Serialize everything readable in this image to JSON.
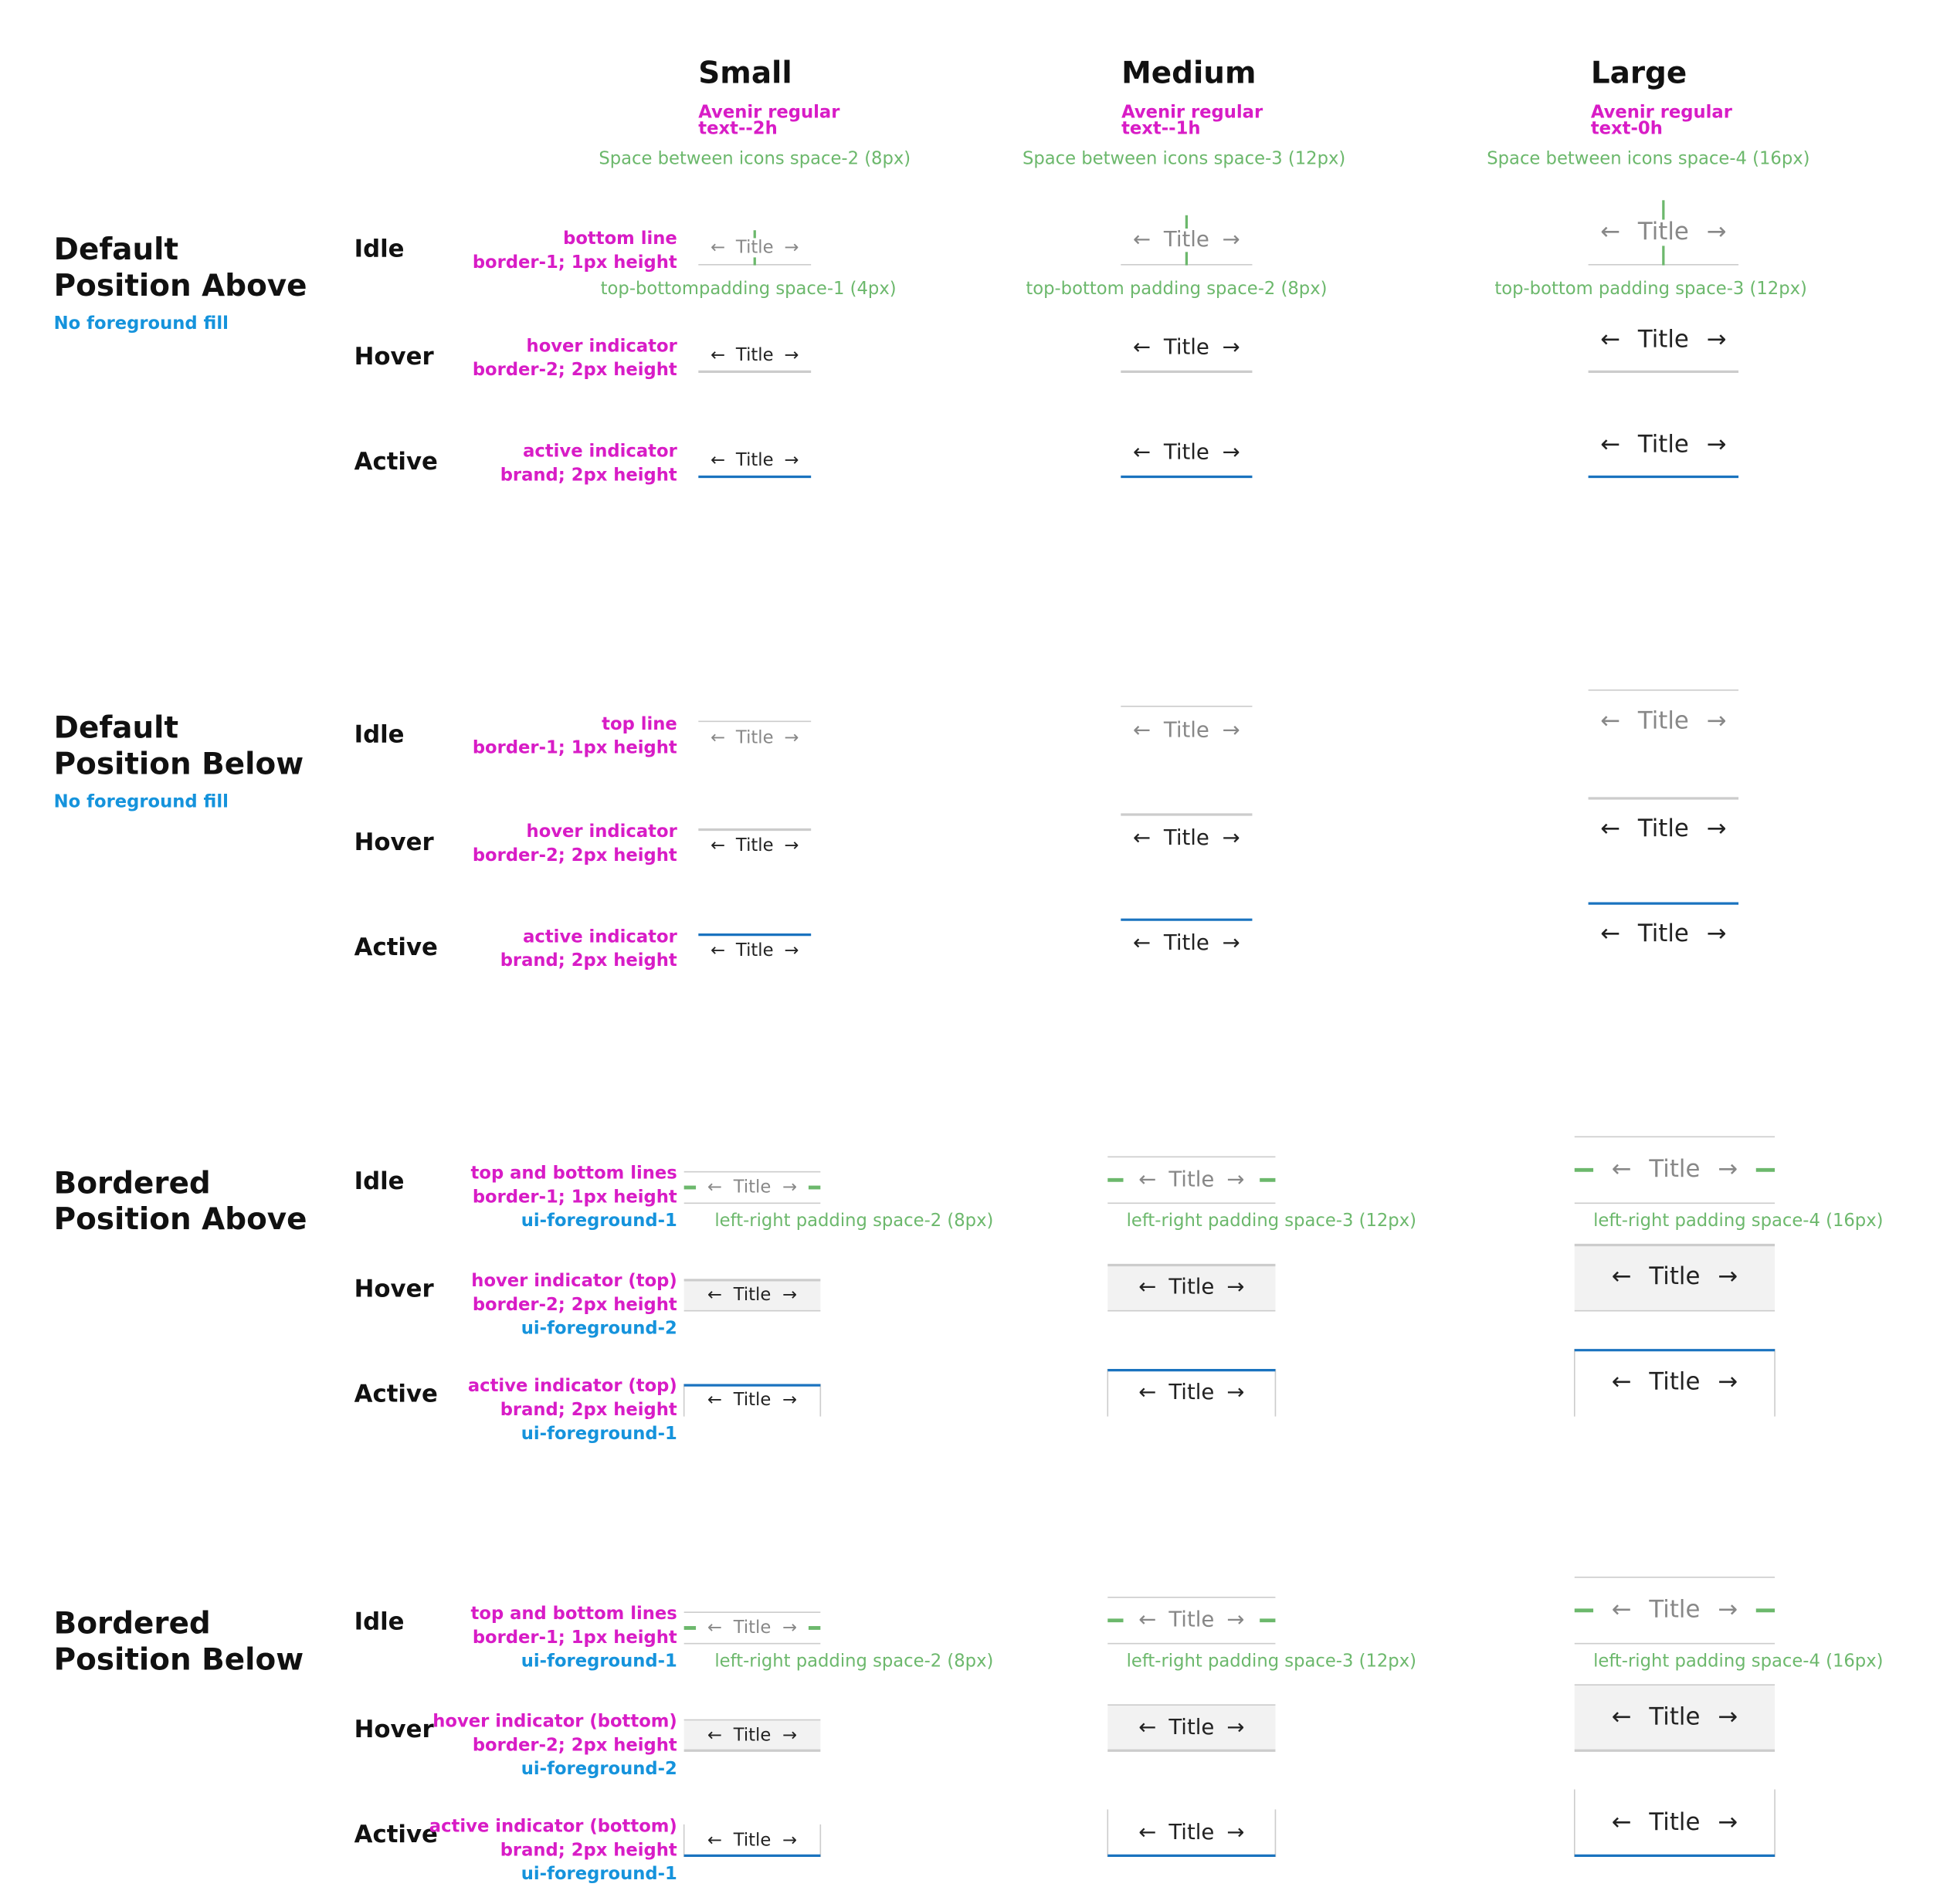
{
  "columns": [
    {
      "title": "Small",
      "font": "Avenir regular",
      "scale": "text--2h",
      "icon_spacing": "Space between icons space-2 (8px)",
      "vertical_padding": "top-bottompadding space-1 (4px)",
      "side_padding": "left-right padding space-2 (8px)"
    },
    {
      "title": "Medium",
      "font": "Avenir regular",
      "scale": "text--1h",
      "icon_spacing": "Space between icons space-3 (12px)",
      "vertical_padding": "top-bottom padding space-2 (8px)",
      "side_padding": "left-right padding space-3 (12px)"
    },
    {
      "title": "Large",
      "font": "Avenir regular",
      "scale": "text-0h",
      "icon_spacing": "Space between icons space-4 (16px)",
      "vertical_padding": "top-bottom padding space-3 (12px)",
      "side_padding": "left-right padding space-4 (16px)"
    }
  ],
  "tab": {
    "left_icon": "←",
    "label": "Title",
    "right_icon": "→"
  },
  "sections": [
    {
      "variant": "default",
      "position": "above",
      "title": [
        "Default",
        "Position Above"
      ],
      "note": "No foreground fill",
      "rows": [
        {
          "state": "Idle",
          "notes": [
            "bottom line",
            "border-1; 1px height"
          ]
        },
        {
          "state": "Hover",
          "notes": [
            "hover indicator",
            "border-2; 2px height"
          ]
        },
        {
          "state": "Active",
          "notes": [
            "active indicator",
            "brand; 2px height"
          ]
        }
      ]
    },
    {
      "variant": "default",
      "position": "below",
      "title": [
        "Default",
        "Position Below"
      ],
      "note": "No foreground fill",
      "rows": [
        {
          "state": "Idle",
          "notes": [
            "top line",
            "border-1; 1px height"
          ]
        },
        {
          "state": "Hover",
          "notes": [
            "hover indicator",
            "border-2; 2px height"
          ]
        },
        {
          "state": "Active",
          "notes": [
            "active indicator",
            "brand; 2px height"
          ]
        }
      ]
    },
    {
      "variant": "bordered",
      "position": "above",
      "title": [
        "Bordered",
        "Position Above"
      ],
      "rows": [
        {
          "state": "Idle",
          "notes": [
            "top and bottom lines",
            "border-1; 1px height"
          ],
          "fill": "ui-foreground-1"
        },
        {
          "state": "Hover",
          "notes": [
            "hover indicator (top)",
            "border-2; 2px height"
          ],
          "fill": "ui-foreground-2"
        },
        {
          "state": "Active",
          "notes": [
            "active indicator (top)",
            "brand; 2px height"
          ],
          "fill": "ui-foreground-1"
        }
      ]
    },
    {
      "variant": "bordered",
      "position": "below",
      "title": [
        "Bordered",
        "Position Below"
      ],
      "rows": [
        {
          "state": "Idle",
          "notes": [
            "top and bottom lines",
            "border-1; 1px height"
          ],
          "fill": "ui-foreground-1"
        },
        {
          "state": "Hover",
          "notes": [
            "hover indicator (bottom)",
            "border-2; 2px height"
          ],
          "fill": "ui-foreground-2"
        },
        {
          "state": "Active",
          "notes": [
            "active indicator (bottom)",
            "brand; 2px height"
          ],
          "fill": "ui-foreground-1"
        }
      ]
    }
  ]
}
